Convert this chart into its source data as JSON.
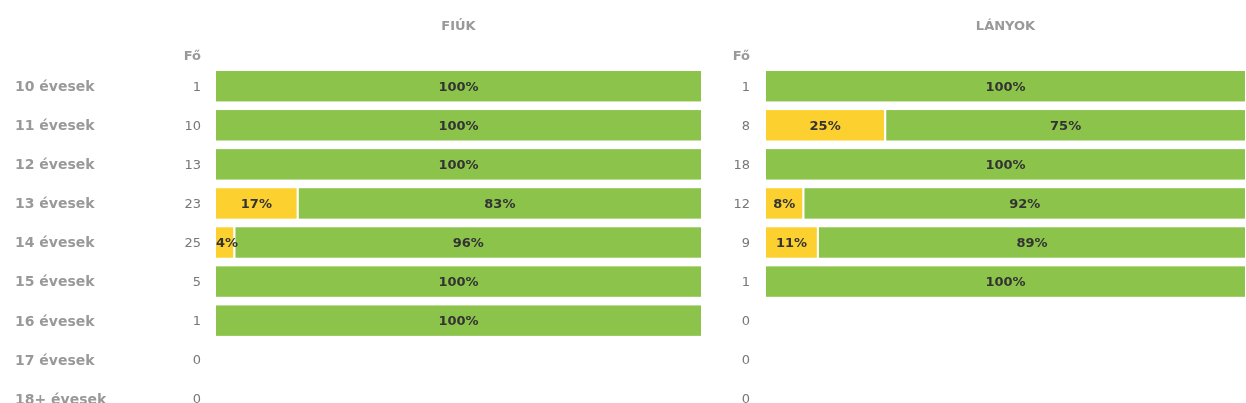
{
  "chart_data": [
    {
      "type": "bar",
      "title": "FIÚK",
      "orientation": "horizontal",
      "stacked": true,
      "tick_labels": "y",
      "xlim": [
        0,
        100
      ],
      "categories": [
        "10 évesek",
        "11 évesek",
        "12 évesek",
        "13 évesek",
        "14 évesek",
        "15 évesek",
        "16 évesek",
        "17 évesek",
        "18+ évesek"
      ],
      "series": [
        {
          "color": "#fcd12f",
          "values": [
            null,
            null,
            null,
            17,
            4,
            null,
            null,
            null,
            null
          ],
          "value_labels": [
            null,
            null,
            null,
            "17%",
            "4%",
            null,
            null,
            null,
            null
          ]
        },
        {
          "color": "#8cc34b",
          "values": [
            100,
            100,
            100,
            83,
            96,
            100,
            100,
            null,
            null
          ],
          "value_labels": [
            "100%",
            "100%",
            "100%",
            "83%",
            "96%",
            "100%",
            "100%",
            null,
            null
          ]
        }
      ],
      "annotations": [
        "Fő",
        "1",
        "10",
        "13",
        "23",
        "25",
        "5",
        "1",
        "0",
        "0"
      ]
    },
    {
      "type": "bar",
      "title": "LÁNYOK",
      "orientation": "horizontal",
      "stacked": true,
      "tick_labels": "y",
      "xlim": [
        0,
        100
      ],
      "categories": [
        "1",
        "8",
        "18",
        "12",
        "9",
        "1",
        "0",
        "0",
        "0"
      ],
      "series": [
        {
          "color": "#fcd12f",
          "values": [
            null,
            25,
            null,
            8,
            11,
            null,
            null,
            null,
            null
          ],
          "value_labels": [
            null,
            "25%",
            null,
            "8%",
            "11%",
            null,
            null,
            null,
            null
          ]
        },
        {
          "color": "#8cc34b",
          "values": [
            100,
            75,
            100,
            92,
            89,
            100,
            null,
            null,
            null
          ],
          "value_labels": [
            "100%",
            "75%",
            "100%",
            "92%",
            "89%",
            "100%",
            null,
            null,
            null
          ]
        }
      ],
      "annotations": [
        "Fő"
      ]
    }
  ]
}
